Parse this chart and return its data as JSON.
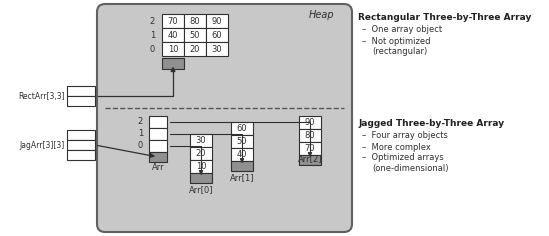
{
  "title": "Heap",
  "bg_color": "#c8c8c8",
  "white": "#ffffff",
  "gray": "#909090",
  "dark": "#202020",
  "rect_array": {
    "rows": [
      [
        "70",
        "80",
        "90"
      ],
      [
        "40",
        "50",
        "60"
      ],
      [
        "10",
        "20",
        "30"
      ]
    ],
    "row_labels": [
      "2",
      "1",
      "0"
    ]
  },
  "arr0_vals": [
    "30",
    "20",
    "10"
  ],
  "arr1_vals": [
    "60",
    "50",
    "40"
  ],
  "arr2_vals": [
    "90",
    "80",
    "70"
  ],
  "arr_row_labels": [
    "2",
    "1",
    "0"
  ],
  "left_label1": "RectArr[3,3]",
  "left_label2": "JagArr[3][3]",
  "arr_label": "Arr",
  "arr0_label": "Arr[0]",
  "arr1_label": "Arr[1]",
  "arr2_label": "Arr[2]",
  "right_title1": "Rectangular Three-by-Three Array",
  "right_bullets1": [
    "One array object",
    "Not optimized",
    "(rectangular)"
  ],
  "right_title2": "Jagged Three-by-Three Array",
  "right_bullets2": [
    "Four array objects",
    "More complex",
    "Optimized arrays",
    "(one-dimensional)"
  ]
}
